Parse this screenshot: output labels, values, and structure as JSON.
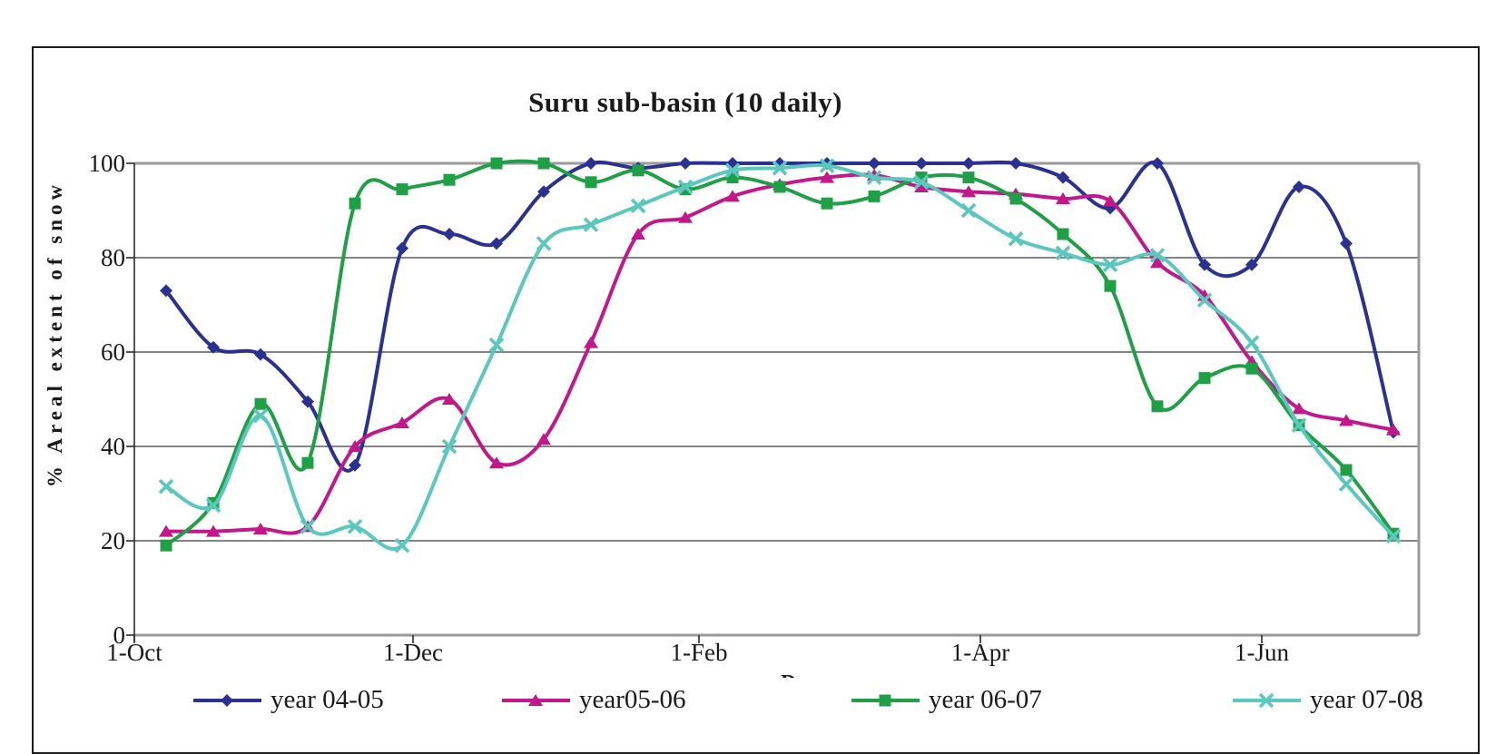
{
  "title": "Suru sub-basin (10 daily)",
  "y_axis": {
    "title": "% Areal extent of snow",
    "ticks": [
      0,
      20,
      40,
      60,
      80,
      100
    ],
    "min": 0,
    "max": 100
  },
  "x_axis": {
    "tick_labels": [
      "1-Oct",
      "1-Dec",
      "1-Feb",
      "1-Apr",
      "1-Jun"
    ],
    "partial_title": "D"
  },
  "legend": [
    {
      "label": "year 04-05",
      "color": "#2B3191",
      "marker": "diamond"
    },
    {
      "label": "year05-06",
      "color": "#C2188C",
      "marker": "triangle"
    },
    {
      "label": "year 06-07",
      "color": "#1FA046",
      "marker": "square"
    },
    {
      "label": "year 07-08",
      "color": "#5BC8BE",
      "marker": "x"
    }
  ],
  "colors": {
    "grid": "#3a3a3a",
    "plot_border": "#9a9a9a",
    "axis": "#2a2a2a",
    "text": "#1a1a1a"
  },
  "chart_data": {
    "type": "line",
    "title": "Suru sub-basin (10 daily)",
    "ylabel": "% Areal extent of snow",
    "ylim": [
      0,
      100
    ],
    "grid": "horizontal-every-20",
    "legend_position": "bottom",
    "x_tick_labels": [
      "1-Oct",
      "1-Dec",
      "1-Feb",
      "1-Apr",
      "1-Jun"
    ],
    "categories": [
      "8-Oct",
      "18-Oct",
      "28-Oct",
      "7-Nov",
      "17-Nov",
      "27-Nov",
      "7-Dec",
      "17-Dec",
      "27-Dec",
      "6-Jan",
      "16-Jan",
      "26-Jan",
      "5-Feb",
      "15-Feb",
      "25-Feb",
      "7-Mar",
      "17-Mar",
      "27-Mar",
      "6-Apr",
      "16-Apr",
      "26-Apr",
      "6-May",
      "16-May",
      "26-May",
      "5-Jun",
      "15-Jun",
      "25-Jun"
    ],
    "series": [
      {
        "name": "year 04-05",
        "color": "#2B3191",
        "marker": "diamond",
        "values": [
          73,
          61,
          59.5,
          49.5,
          36,
          82,
          85,
          83,
          94,
          100,
          99,
          100,
          100,
          100,
          100,
          100,
          100,
          100,
          100,
          97,
          90.5,
          100,
          78.5,
          78.5,
          95,
          83,
          43
        ]
      },
      {
        "name": "year05-06",
        "color": "#C2188C",
        "marker": "triangle",
        "values": [
          22,
          22,
          22.5,
          23,
          40,
          45,
          50,
          36.5,
          41.5,
          62,
          85,
          88.5,
          93,
          95.5,
          97,
          97.5,
          95,
          94,
          93.5,
          92.5,
          92,
          79,
          72,
          58,
          48,
          45.5,
          43.5
        ]
      },
      {
        "name": "year 06-07",
        "color": "#1FA046",
        "marker": "square",
        "values": [
          19,
          28,
          49,
          36.5,
          91.5,
          94.5,
          96.5,
          100,
          100,
          96,
          98.5,
          94.5,
          97,
          95,
          91.5,
          93,
          97,
          97,
          92.5,
          85,
          74,
          48.5,
          54.5,
          56.5,
          44.5,
          35,
          21.5
        ]
      },
      {
        "name": "year 07-08",
        "color": "#5BC8BE",
        "marker": "x",
        "values": [
          31.5,
          27.5,
          46.5,
          23,
          23,
          19,
          40,
          61.5,
          83,
          87,
          91,
          95,
          98.5,
          99,
          99.5,
          97,
          96,
          90,
          84,
          81,
          78.5,
          80.5,
          71,
          62,
          44.5,
          32,
          21
        ]
      }
    ]
  }
}
